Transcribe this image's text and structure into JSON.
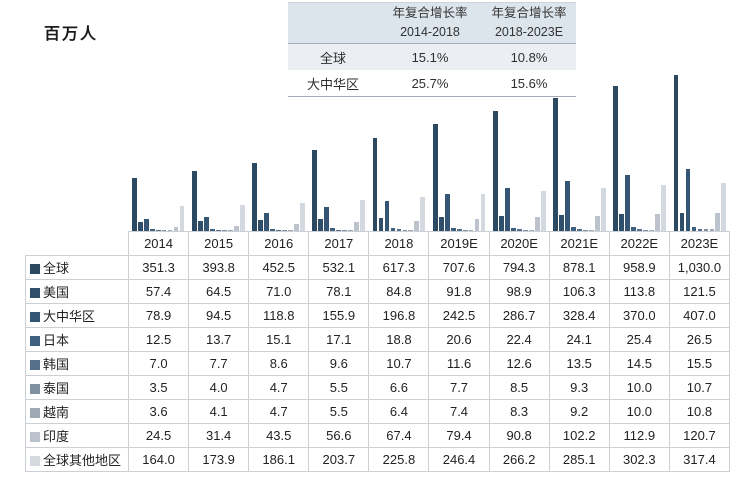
{
  "unit_label": "百万人",
  "colors": {
    "series": [
      "#2b4961",
      "#2e4e69",
      "#345674",
      "#406080",
      "#566f8b",
      "#8090a2",
      "#9fa9b6",
      "#bcc3cc",
      "#d4d9df"
    ],
    "table_header_bg": "#dce4ec",
    "highlight_row_bg": "#ebeff4",
    "grid_border": "#ccd0d5"
  },
  "cagr_table": {
    "col_headers": [
      "年复合增长率\n2014-2018",
      "年复合增长率\n2018-2023E"
    ],
    "rows": [
      {
        "label": "全球",
        "values": [
          "15.1%",
          "10.8%"
        ],
        "highlight": true
      },
      {
        "label": "大中华区",
        "values": [
          "25.7%",
          "15.6%"
        ],
        "highlight": false
      }
    ]
  },
  "chart_data": {
    "type": "bar",
    "title": "",
    "ylabel": "百万人",
    "xlabel": "",
    "ylim": [
      0,
      1030
    ],
    "grid": false,
    "legend_position": "table-row-labels",
    "categories": [
      "2014",
      "2015",
      "2016",
      "2017",
      "2018",
      "2019E",
      "2020E",
      "2021E",
      "2022E",
      "2023E"
    ],
    "series": [
      {
        "name": "全球",
        "values": [
          351.3,
          393.8,
          452.5,
          532.1,
          617.3,
          707.6,
          794.3,
          878.1,
          958.9,
          1030.0
        ]
      },
      {
        "name": "美国",
        "values": [
          57.4,
          64.5,
          71.0,
          78.1,
          84.8,
          91.8,
          98.9,
          106.3,
          113.8,
          121.5
        ]
      },
      {
        "name": "大中华区",
        "values": [
          78.9,
          94.5,
          118.8,
          155.9,
          196.8,
          242.5,
          286.7,
          328.4,
          370.0,
          407.0
        ]
      },
      {
        "name": "日本",
        "values": [
          12.5,
          13.7,
          15.1,
          17.1,
          18.8,
          20.6,
          22.4,
          24.1,
          25.4,
          26.5
        ]
      },
      {
        "name": "韩国",
        "values": [
          7.0,
          7.7,
          8.6,
          9.6,
          10.7,
          11.6,
          12.6,
          13.5,
          14.5,
          15.5
        ]
      },
      {
        "name": "泰国",
        "values": [
          3.5,
          4.0,
          4.7,
          5.5,
          6.6,
          7.7,
          8.5,
          9.3,
          10.0,
          10.7
        ]
      },
      {
        "name": "越南",
        "values": [
          3.6,
          4.1,
          4.7,
          5.5,
          6.4,
          7.4,
          8.3,
          9.2,
          10.0,
          10.8
        ]
      },
      {
        "name": "印度",
        "values": [
          24.5,
          31.4,
          43.5,
          56.6,
          67.4,
          79.4,
          90.8,
          102.2,
          112.9,
          120.7
        ]
      },
      {
        "name": "全球其他地区",
        "values": [
          164.0,
          173.9,
          186.1,
          203.7,
          225.8,
          246.4,
          266.2,
          285.1,
          302.3,
          317.4
        ]
      }
    ]
  }
}
